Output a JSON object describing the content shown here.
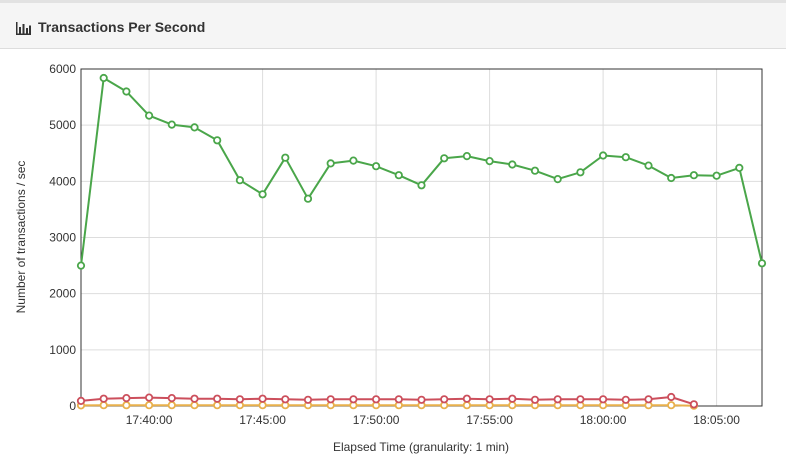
{
  "header": {
    "title": "Transactions Per Second",
    "icon": "bar-chart-icon"
  },
  "chart_data": {
    "type": "line",
    "xlabel": "Elapsed Time (granularity: 1 min)",
    "ylabel": "Number of transactions / sec",
    "ylim": [
      0,
      6000
    ],
    "yticks": [
      0,
      1000,
      2000,
      3000,
      4000,
      5000,
      6000
    ],
    "xlim": [
      "17:37:00",
      "18:07:00"
    ],
    "xticks": [
      "17:40:00",
      "17:45:00",
      "17:50:00",
      "17:55:00",
      "18:00:00",
      "18:05:00"
    ],
    "grid": true,
    "legend": "none",
    "series": [
      {
        "color": "#4aa64a",
        "x": [
          "17:37",
          "17:38",
          "17:39",
          "17:40",
          "17:41",
          "17:42",
          "17:43",
          "17:44",
          "17:45",
          "17:46",
          "17:47",
          "17:48",
          "17:49",
          "17:50",
          "17:51",
          "17:52",
          "17:53",
          "17:54",
          "17:55",
          "17:56",
          "17:57",
          "17:58",
          "17:59",
          "18:00",
          "18:01",
          "18:02",
          "18:03",
          "18:04",
          "18:05",
          "18:06",
          "18:07"
        ],
        "values": [
          2500,
          5840,
          5600,
          5170,
          5010,
          4960,
          4730,
          4020,
          3770,
          4420,
          3690,
          4320,
          4370,
          4270,
          4110,
          3930,
          4410,
          4450,
          4360,
          4300,
          4190,
          4040,
          4160,
          4460,
          4430,
          4280,
          4060,
          4110,
          4100,
          4240,
          2540
        ]
      },
      {
        "color": "#cc4f5c",
        "x": [
          "17:37",
          "17:38",
          "17:39",
          "17:40",
          "17:41",
          "17:42",
          "17:43",
          "17:44",
          "17:45",
          "17:46",
          "17:47",
          "17:48",
          "17:49",
          "17:50",
          "17:51",
          "17:52",
          "17:53",
          "17:54",
          "17:55",
          "17:56",
          "17:57",
          "17:58",
          "17:59",
          "18:00",
          "18:01",
          "18:02",
          "18:03",
          "18:04"
        ],
        "values": [
          90,
          130,
          140,
          150,
          140,
          130,
          130,
          120,
          130,
          120,
          110,
          120,
          120,
          120,
          120,
          110,
          120,
          130,
          120,
          130,
          110,
          120,
          120,
          120,
          110,
          120,
          160,
          30
        ]
      },
      {
        "color": "#e8b04c",
        "x": [
          "17:37",
          "17:38",
          "17:39",
          "17:40",
          "17:41",
          "17:42",
          "17:43",
          "17:44",
          "17:45",
          "17:46",
          "17:47",
          "17:48",
          "17:49",
          "17:50",
          "17:51",
          "17:52",
          "17:53",
          "17:54",
          "17:55",
          "17:56",
          "17:57",
          "17:58",
          "17:59",
          "18:00",
          "18:01",
          "18:02",
          "18:03",
          "18:04"
        ],
        "values": [
          10,
          15,
          15,
          15,
          15,
          15,
          15,
          15,
          15,
          15,
          15,
          15,
          15,
          15,
          15,
          15,
          15,
          15,
          15,
          15,
          15,
          15,
          15,
          15,
          15,
          15,
          15,
          5
        ]
      }
    ]
  }
}
